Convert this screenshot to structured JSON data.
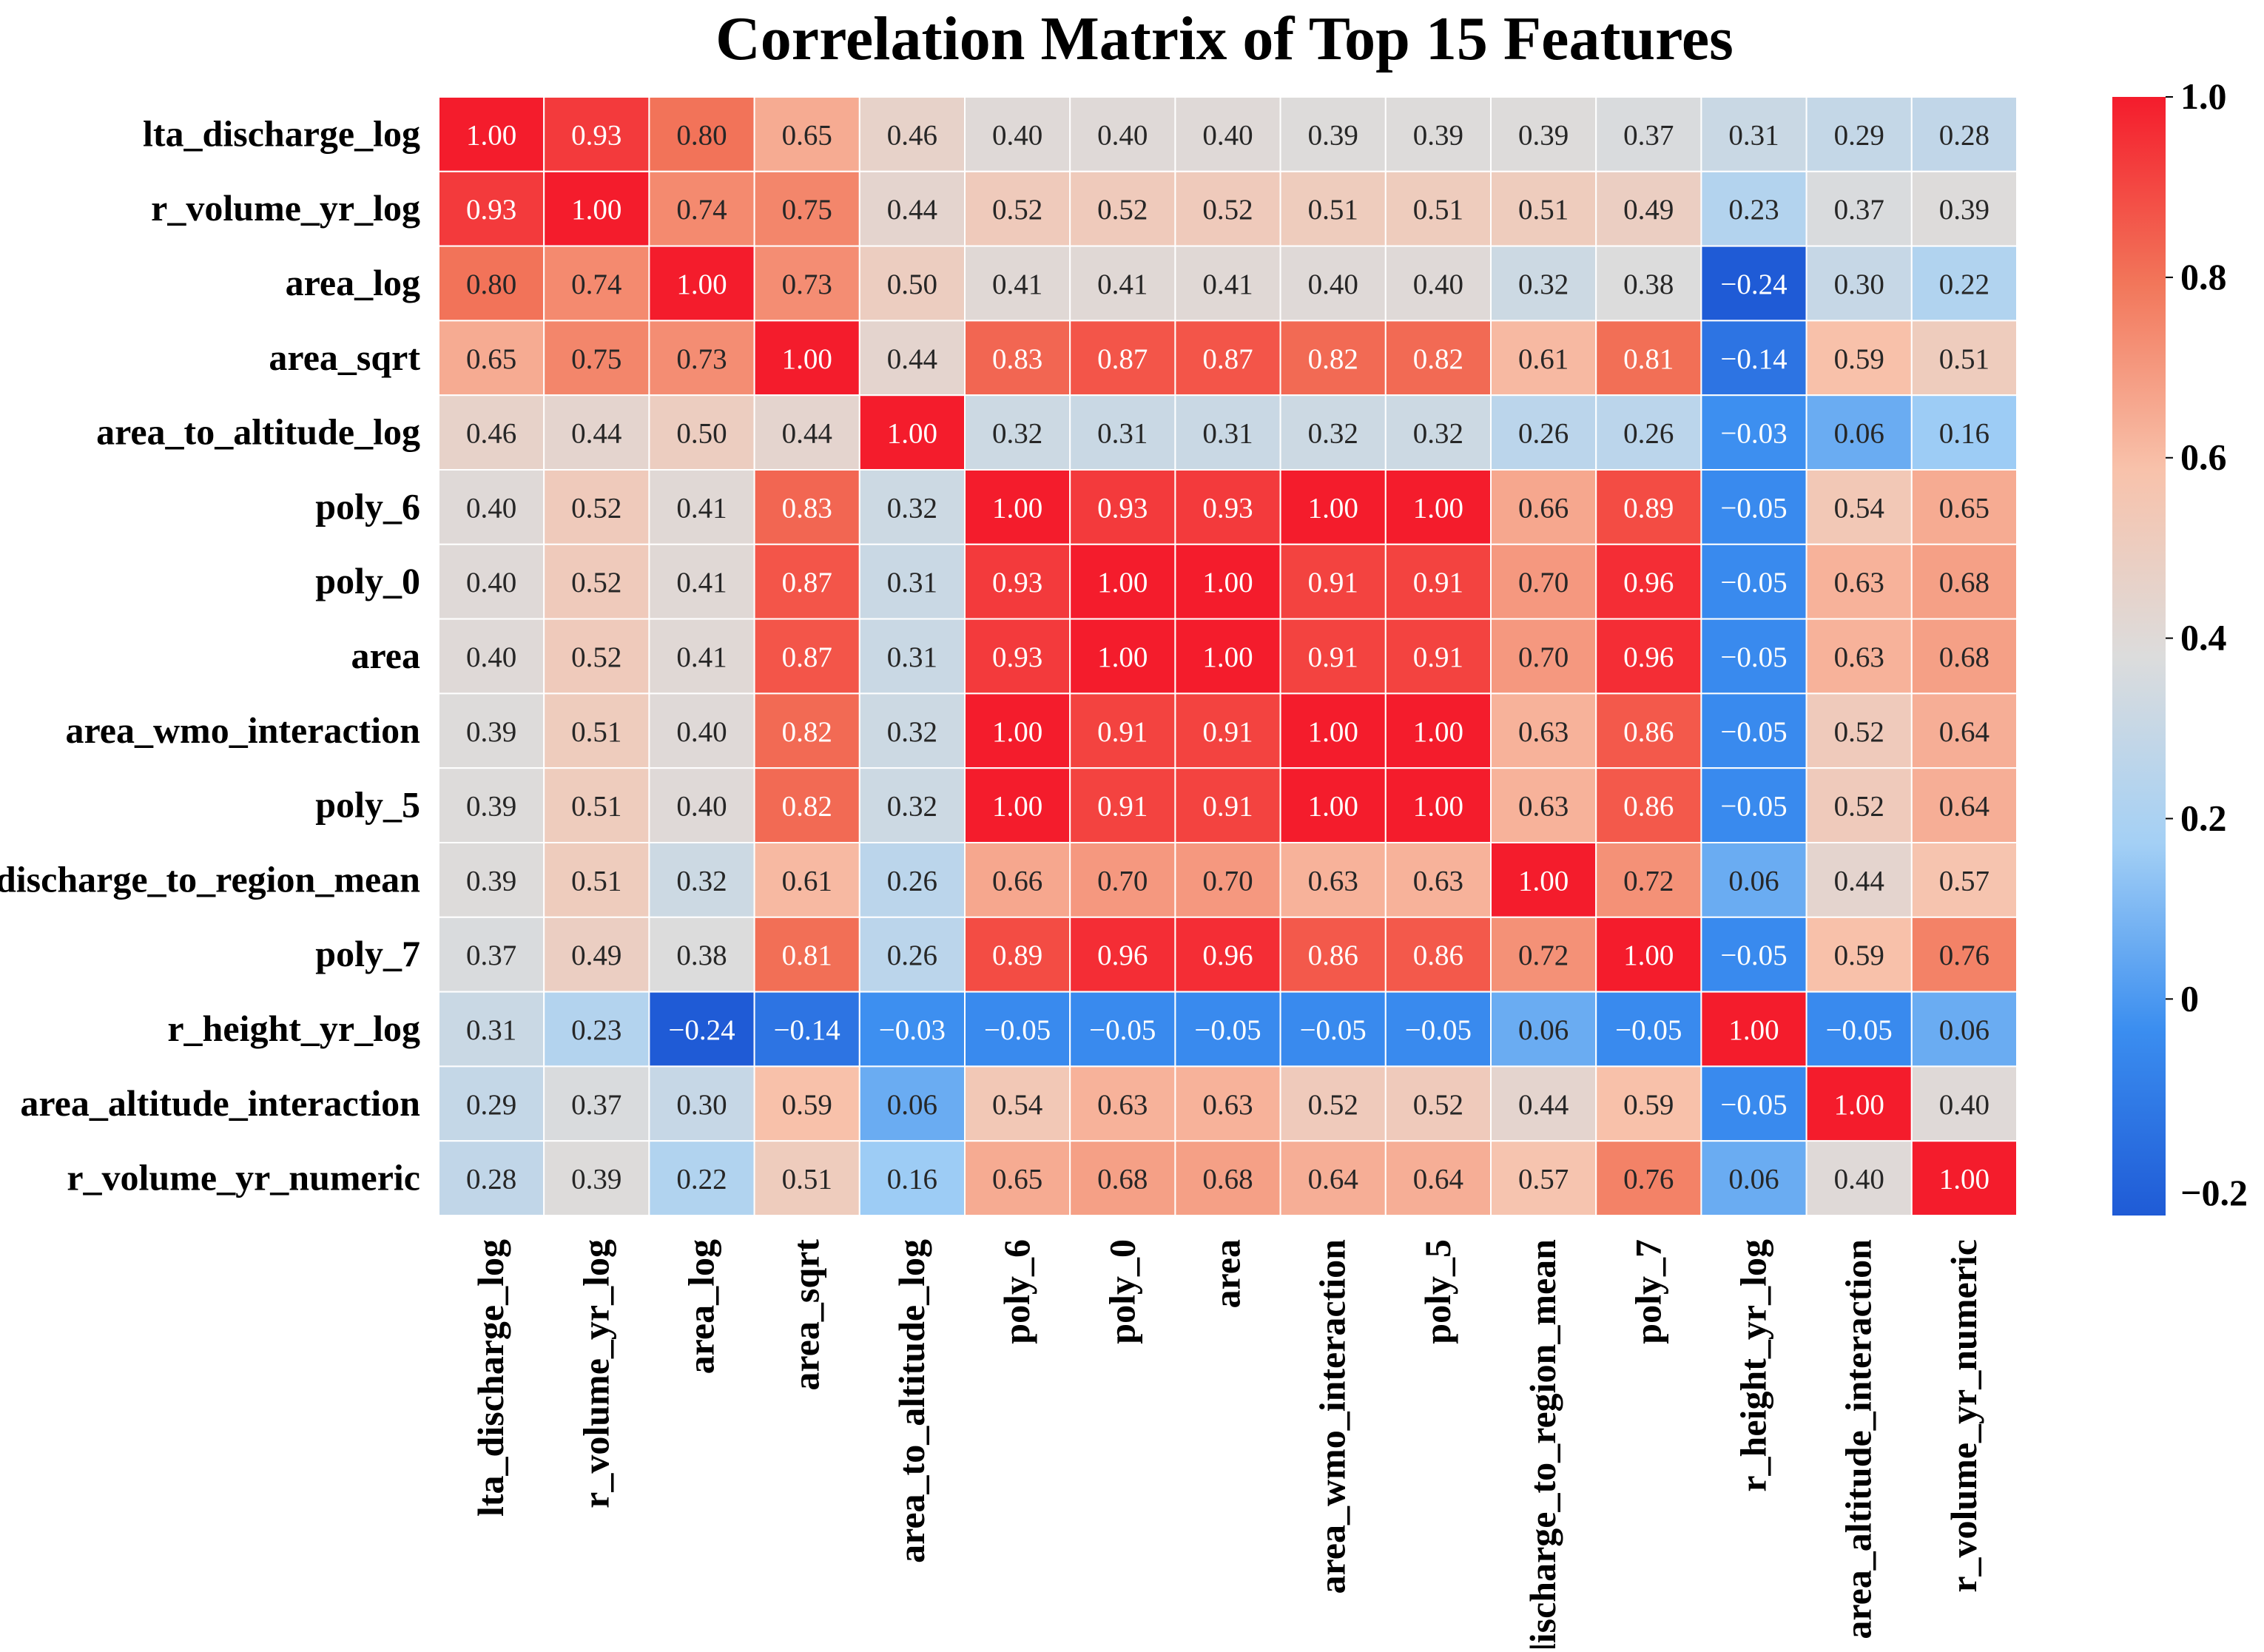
{
  "chart_data": {
    "type": "heatmap",
    "title": "Correlation Matrix of Top 15 Features",
    "labels": [
      "lta_discharge_log",
      "r_volume_yr_log",
      "area_log",
      "area_sqrt",
      "area_to_altitude_log",
      "poly_6",
      "poly_0",
      "area",
      "area_wmo_interaction",
      "poly_5",
      "discharge_to_region_mean",
      "poly_7",
      "r_height_yr_log",
      "area_altitude_interaction",
      "r_volume_yr_numeric"
    ],
    "values": [
      [
        1.0,
        0.93,
        0.8,
        0.65,
        0.46,
        0.4,
        0.4,
        0.4,
        0.39,
        0.39,
        0.39,
        0.37,
        0.31,
        0.29,
        0.28
      ],
      [
        0.93,
        1.0,
        0.74,
        0.75,
        0.44,
        0.52,
        0.52,
        0.52,
        0.51,
        0.51,
        0.51,
        0.49,
        0.23,
        0.37,
        0.39
      ],
      [
        0.8,
        0.74,
        1.0,
        0.73,
        0.5,
        0.41,
        0.41,
        0.41,
        0.4,
        0.4,
        0.32,
        0.38,
        -0.24,
        0.3,
        0.22
      ],
      [
        0.65,
        0.75,
        0.73,
        1.0,
        0.44,
        0.83,
        0.87,
        0.87,
        0.82,
        0.82,
        0.61,
        0.81,
        -0.14,
        0.59,
        0.51
      ],
      [
        0.46,
        0.44,
        0.5,
        0.44,
        1.0,
        0.32,
        0.31,
        0.31,
        0.32,
        0.32,
        0.26,
        0.26,
        -0.03,
        0.06,
        0.16
      ],
      [
        0.4,
        0.52,
        0.41,
        0.83,
        0.32,
        1.0,
        0.93,
        0.93,
        1.0,
        1.0,
        0.66,
        0.89,
        -0.05,
        0.54,
        0.65
      ],
      [
        0.4,
        0.52,
        0.41,
        0.87,
        0.31,
        0.93,
        1.0,
        1.0,
        0.91,
        0.91,
        0.7,
        0.96,
        -0.05,
        0.63,
        0.68
      ],
      [
        0.4,
        0.52,
        0.41,
        0.87,
        0.31,
        0.93,
        1.0,
        1.0,
        0.91,
        0.91,
        0.7,
        0.96,
        -0.05,
        0.63,
        0.68
      ],
      [
        0.39,
        0.51,
        0.4,
        0.82,
        0.32,
        1.0,
        0.91,
        0.91,
        1.0,
        1.0,
        0.63,
        0.86,
        -0.05,
        0.52,
        0.64
      ],
      [
        0.39,
        0.51,
        0.4,
        0.82,
        0.32,
        1.0,
        0.91,
        0.91,
        1.0,
        1.0,
        0.63,
        0.86,
        -0.05,
        0.52,
        0.64
      ],
      [
        0.39,
        0.51,
        0.32,
        0.61,
        0.26,
        0.66,
        0.7,
        0.7,
        0.63,
        0.63,
        1.0,
        0.72,
        0.06,
        0.44,
        0.57
      ],
      [
        0.37,
        0.49,
        0.38,
        0.81,
        0.26,
        0.89,
        0.96,
        0.96,
        0.86,
        0.86,
        0.72,
        1.0,
        -0.05,
        0.59,
        0.76
      ],
      [
        0.31,
        0.23,
        -0.24,
        -0.14,
        -0.03,
        -0.05,
        -0.05,
        -0.05,
        -0.05,
        -0.05,
        0.06,
        -0.05,
        1.0,
        -0.05,
        0.06
      ],
      [
        0.29,
        0.37,
        0.3,
        0.59,
        0.06,
        0.54,
        0.63,
        0.63,
        0.52,
        0.52,
        0.44,
        0.59,
        -0.05,
        1.0,
        0.4
      ],
      [
        0.28,
        0.39,
        0.22,
        0.51,
        0.16,
        0.65,
        0.68,
        0.68,
        0.64,
        0.64,
        0.57,
        0.76,
        0.06,
        0.4,
        1.0
      ]
    ],
    "colormap": [
      "#1f5bd6",
      "#3b8ef0",
      "#a4d0f5",
      "#dcdcdc",
      "#f8c2ab",
      "#f2765a",
      "#f41c2c"
    ],
    "vmin": -0.24,
    "vmax": 1.0,
    "colorbar_ticks": [
      1.0,
      0.8,
      0.6,
      0.4,
      0.2,
      0
    ],
    "colorbar_tick_labels": [
      "1.0",
      "0.8",
      "0.6",
      "0.4",
      "0.2",
      "0",
      "−0.2"
    ],
    "colorbar_bottom_label_value": -0.2,
    "colorbar_position": "right",
    "xlabel": "",
    "ylabel": ""
  }
}
